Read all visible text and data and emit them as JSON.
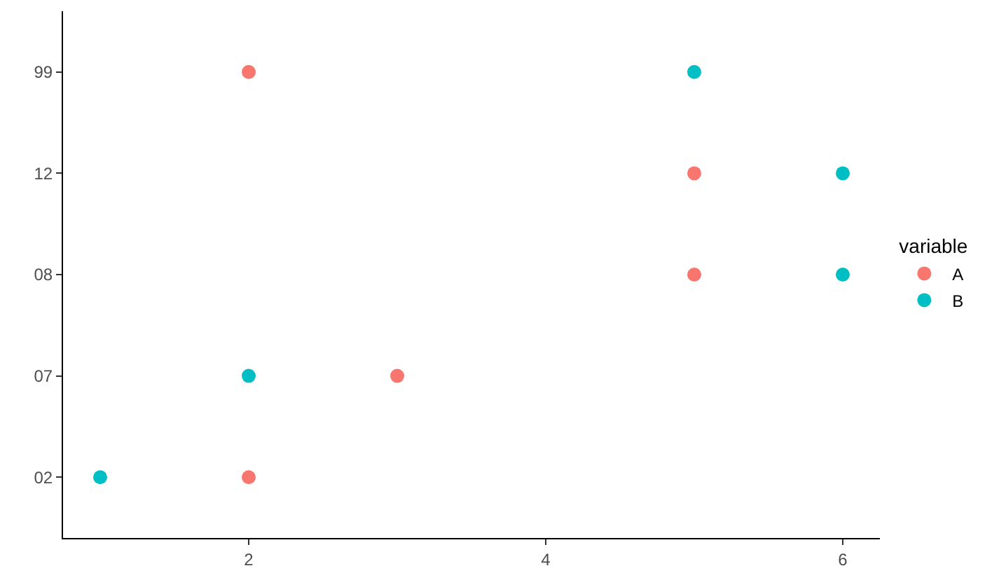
{
  "chart_data": {
    "type": "scatter",
    "orientation": "horizontal",
    "legend_title": "variable",
    "legend": "right",
    "grid": false,
    "marker": "circle",
    "categories": [
      "99",
      "12",
      "08",
      "07",
      "02"
    ],
    "xlim": [
      0.75,
      6.25
    ],
    "xticks": [
      2,
      4,
      6
    ],
    "series": [
      {
        "name": "A",
        "color": "#f8766d",
        "values": [
          2,
          5,
          5,
          3,
          2
        ]
      },
      {
        "name": "B",
        "color": "#00bfc4",
        "values": [
          5,
          6,
          6,
          2,
          1
        ]
      }
    ]
  }
}
